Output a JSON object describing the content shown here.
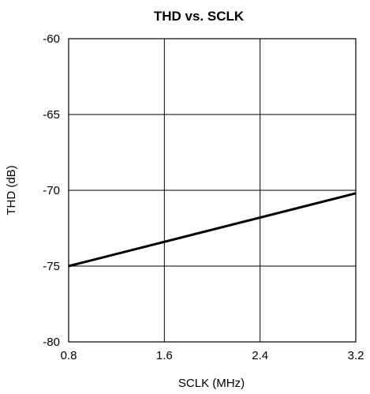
{
  "chart_data": {
    "type": "line",
    "title": "THD vs. SCLK",
    "xlabel": "SCLK (MHz)",
    "ylabel": "THD (dB)",
    "xlim": [
      0.8,
      3.2
    ],
    "ylim": [
      -80,
      -60
    ],
    "x_ticks": [
      0.8,
      1.6,
      2.4,
      3.2
    ],
    "x_tick_labels": [
      "0.8",
      "1.6",
      "2.4",
      "3.2"
    ],
    "y_ticks": [
      -60,
      -65,
      -70,
      -75,
      -80
    ],
    "y_tick_labels": [
      "-60",
      "-65",
      "-70",
      "-75",
      "-80"
    ],
    "grid": true,
    "series": [
      {
        "x": [
          0.8,
          3.2
        ],
        "y": [
          -75.0,
          -70.2
        ]
      }
    ],
    "colors": {
      "line": "#000000",
      "grid": "#000000",
      "background": "#ffffff"
    }
  }
}
